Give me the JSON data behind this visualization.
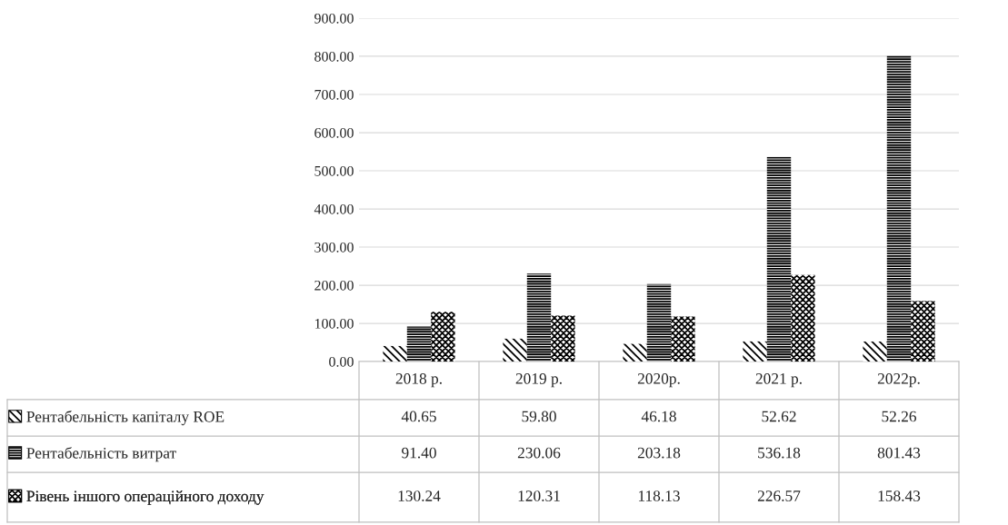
{
  "chart_data": {
    "type": "bar",
    "categories": [
      "2018 р.",
      "2019 р.",
      "2020р.",
      "2021 р.",
      "2022р."
    ],
    "series": [
      {
        "name": "Рентабельність капіталу ROE",
        "color": "#000000",
        "values": [
          40.65,
          59.8,
          46.18,
          52.62,
          52.26
        ],
        "value_labels": [
          "40.65",
          "59.80",
          "46.18",
          "52.62",
          "52.26"
        ]
      },
      {
        "name": "Рентабельність витрат",
        "color": "#000000",
        "values": [
          91.4,
          230.06,
          203.18,
          536.18,
          801.43
        ],
        "value_labels": [
          "91.40",
          "230.06",
          "203.18",
          "536.18",
          "801.43"
        ]
      },
      {
        "name": "Рівень іншого операційного доходу",
        "color": "#000000",
        "values": [
          130.24,
          120.31,
          118.13,
          226.57,
          158.43
        ],
        "value_labels": [
          "130.24",
          "120.31",
          "118.13",
          "226.57",
          "158.43"
        ]
      }
    ],
    "ylim": [
      0,
      900
    ],
    "yticks": [
      {
        "value": 0,
        "label": "0.00"
      },
      {
        "value": 100,
        "label": "100.00"
      },
      {
        "value": 200,
        "label": "200.00"
      },
      {
        "value": 300,
        "label": "300.00"
      },
      {
        "value": 400,
        "label": "400.00"
      },
      {
        "value": 500,
        "label": "500.00"
      },
      {
        "value": 600,
        "label": "600.00"
      },
      {
        "value": 700,
        "label": "700.00"
      },
      {
        "value": 800,
        "label": "800.00"
      },
      {
        "value": 900,
        "label": "900.00"
      }
    ],
    "grid": "y",
    "legend": "bottom"
  }
}
